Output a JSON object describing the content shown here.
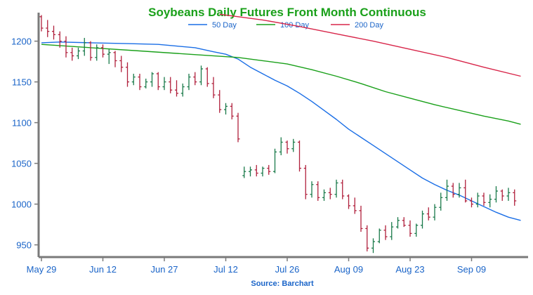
{
  "chart_data": {
    "type": "ohlc",
    "title": "Soybeans Daily Futures Front Month Continuous",
    "source": "Source: Barchart",
    "ylim": [
      935,
      1235
    ],
    "y_ticks": [
      950,
      1000,
      1050,
      1100,
      1150,
      1200
    ],
    "x_tick_labels": [
      "May 29",
      "Jun 12",
      "Jun 27",
      "Jul 12",
      "Jul 26",
      "Aug 09",
      "Aug 23",
      "Sep 09"
    ],
    "x_tick_index": [
      0,
      10,
      20,
      30,
      40,
      50,
      60,
      70
    ],
    "legend": [
      {
        "name": "50 Day",
        "color": "#1a6ee6",
        "key": "ma50"
      },
      {
        "name": "100 Day",
        "color": "#1aa01a",
        "key": "ma100"
      },
      {
        "name": "200 Day",
        "color": "#d8264a",
        "key": "ma200"
      }
    ],
    "up_color": "#1a7a4a",
    "down_color": "#b0203c",
    "ohlc": [
      [
        1230,
        1232,
        1212,
        1216
      ],
      [
        1216,
        1226,
        1205,
        1212
      ],
      [
        1212,
        1219,
        1202,
        1208
      ],
      [
        1208,
        1212,
        1192,
        1200
      ],
      [
        1200,
        1206,
        1180,
        1186
      ],
      [
        1186,
        1192,
        1176,
        1182
      ],
      [
        1182,
        1192,
        1178,
        1188
      ],
      [
        1188,
        1204,
        1182,
        1198
      ],
      [
        1198,
        1200,
        1176,
        1180
      ],
      [
        1180,
        1196,
        1176,
        1192
      ],
      [
        1192,
        1196,
        1180,
        1184
      ],
      [
        1184,
        1190,
        1172,
        1186
      ],
      [
        1186,
        1188,
        1168,
        1176
      ],
      [
        1176,
        1182,
        1162,
        1168
      ],
      [
        1168,
        1174,
        1144,
        1150
      ],
      [
        1150,
        1160,
        1146,
        1156
      ],
      [
        1156,
        1160,
        1140,
        1144
      ],
      [
        1144,
        1154,
        1142,
        1150
      ],
      [
        1150,
        1162,
        1144,
        1160
      ],
      [
        1160,
        1162,
        1140,
        1144
      ],
      [
        1144,
        1156,
        1140,
        1150
      ],
      [
        1150,
        1156,
        1136,
        1140
      ],
      [
        1140,
        1152,
        1132,
        1136
      ],
      [
        1136,
        1148,
        1132,
        1144
      ],
      [
        1144,
        1160,
        1140,
        1156
      ],
      [
        1156,
        1162,
        1146,
        1150
      ],
      [
        1150,
        1170,
        1146,
        1166
      ],
      [
        1166,
        1168,
        1144,
        1148
      ],
      [
        1148,
        1156,
        1130,
        1134
      ],
      [
        1134,
        1140,
        1112,
        1116
      ],
      [
        1116,
        1124,
        1110,
        1120
      ],
      [
        1120,
        1124,
        1104,
        1108
      ],
      [
        1108,
        1112,
        1076,
        1080
      ],
      [
        1035,
        1046,
        1032,
        1040
      ],
      [
        1040,
        1046,
        1034,
        1042
      ],
      [
        1042,
        1048,
        1034,
        1038
      ],
      [
        1038,
        1046,
        1034,
        1044
      ],
      [
        1044,
        1048,
        1036,
        1040
      ],
      [
        1040,
        1068,
        1038,
        1064
      ],
      [
        1064,
        1082,
        1060,
        1076
      ],
      [
        1076,
        1078,
        1062,
        1068
      ],
      [
        1068,
        1080,
        1064,
        1076
      ],
      [
        1076,
        1078,
        1040,
        1044
      ],
      [
        1044,
        1048,
        1006,
        1012
      ],
      [
        1012,
        1028,
        1008,
        1024
      ],
      [
        1024,
        1028,
        1004,
        1008
      ],
      [
        1008,
        1018,
        1004,
        1014
      ],
      [
        1014,
        1020,
        1006,
        1012
      ],
      [
        1012,
        1030,
        1008,
        1026
      ],
      [
        1026,
        1030,
        1006,
        1010
      ],
      [
        1010,
        1012,
        994,
        998
      ],
      [
        998,
        1008,
        988,
        992
      ],
      [
        992,
        998,
        966,
        970
      ],
      [
        970,
        974,
        942,
        946
      ],
      [
        946,
        958,
        940,
        954
      ],
      [
        954,
        970,
        952,
        968
      ],
      [
        968,
        974,
        956,
        960
      ],
      [
        960,
        978,
        956,
        972
      ],
      [
        972,
        984,
        970,
        980
      ],
      [
        980,
        984,
        972,
        974
      ],
      [
        974,
        980,
        960,
        964
      ],
      [
        964,
        976,
        960,
        974
      ],
      [
        974,
        992,
        970,
        988
      ],
      [
        988,
        996,
        980,
        984
      ],
      [
        984,
        1000,
        980,
        996
      ],
      [
        996,
        1014,
        992,
        1008
      ],
      [
        1008,
        1030,
        1004,
        1022
      ],
      [
        1022,
        1026,
        1008,
        1012
      ],
      [
        1012,
        1026,
        1008,
        1020
      ],
      [
        1020,
        1030,
        1002,
        1004
      ],
      [
        1004,
        1008,
        996,
        1000
      ],
      [
        1000,
        1014,
        996,
        1010
      ],
      [
        1010,
        1014,
        998,
        1002
      ],
      [
        1002,
        1012,
        996,
        1006
      ],
      [
        1006,
        1022,
        1002,
        1016
      ],
      [
        1016,
        1018,
        1004,
        1010
      ],
      [
        1010,
        1020,
        1004,
        1014
      ],
      [
        1014,
        1018,
        998,
        1004
      ]
    ],
    "ma50": [
      [
        0,
        1198
      ],
      [
        3,
        1199
      ],
      [
        8,
        1198
      ],
      [
        14,
        1197
      ],
      [
        19,
        1196
      ],
      [
        22,
        1194
      ],
      [
        25,
        1192
      ],
      [
        28,
        1187
      ],
      [
        30,
        1184
      ],
      [
        32,
        1178
      ],
      [
        34,
        1168
      ],
      [
        36,
        1160
      ],
      [
        38,
        1152
      ],
      [
        40,
        1145
      ],
      [
        42,
        1136
      ],
      [
        44,
        1126
      ],
      [
        46,
        1115
      ],
      [
        48,
        1104
      ],
      [
        50,
        1092
      ],
      [
        52,
        1082
      ],
      [
        54,
        1072
      ],
      [
        56,
        1062
      ],
      [
        58,
        1052
      ],
      [
        60,
        1042
      ],
      [
        62,
        1032
      ],
      [
        64,
        1024
      ],
      [
        66,
        1017
      ],
      [
        68,
        1011
      ],
      [
        70,
        1004
      ],
      [
        72,
        997
      ],
      [
        74,
        990
      ],
      [
        76,
        984
      ],
      [
        78,
        980
      ]
    ],
    "ma100": [
      [
        0,
        1196
      ],
      [
        8,
        1192
      ],
      [
        16,
        1188
      ],
      [
        24,
        1184
      ],
      [
        32,
        1180
      ],
      [
        36,
        1176
      ],
      [
        40,
        1172
      ],
      [
        44,
        1165
      ],
      [
        48,
        1157
      ],
      [
        52,
        1148
      ],
      [
        56,
        1138
      ],
      [
        60,
        1130
      ],
      [
        64,
        1122
      ],
      [
        68,
        1115
      ],
      [
        72,
        1108
      ],
      [
        76,
        1102
      ],
      [
        78,
        1098
      ]
    ],
    "ma200": [
      [
        29,
        1233
      ],
      [
        36,
        1226
      ],
      [
        42,
        1218
      ],
      [
        48,
        1209
      ],
      [
        54,
        1200
      ],
      [
        60,
        1190
      ],
      [
        66,
        1180
      ],
      [
        72,
        1168
      ],
      [
        78,
        1157
      ]
    ]
  }
}
